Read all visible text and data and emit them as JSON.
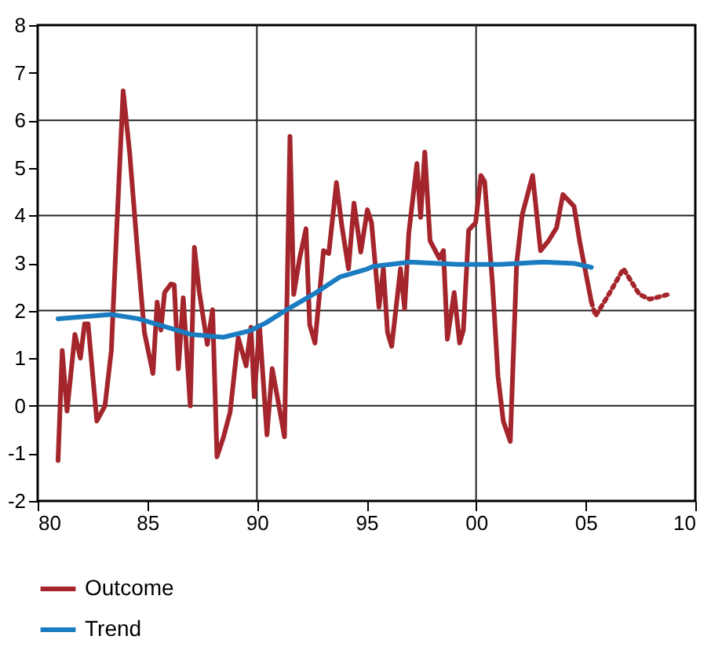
{
  "chart_data": {
    "type": "line",
    "xlim": [
      1980,
      2010
    ],
    "ylim": [
      -2,
      8
    ],
    "xticks": [
      {
        "value": 1980,
        "label": "80"
      },
      {
        "value": 1985,
        "label": "85"
      },
      {
        "value": 1990,
        "label": "90"
      },
      {
        "value": 1995,
        "label": "95"
      },
      {
        "value": 2000,
        "label": "00"
      },
      {
        "value": 2005,
        "label": "05"
      },
      {
        "value": 2010,
        "label": "10"
      }
    ],
    "yticks": [
      -2,
      -1,
      0,
      1,
      2,
      3,
      4,
      5,
      6,
      7,
      8
    ],
    "legend": "bottom",
    "grid": false,
    "ref_lines": [
      {
        "axis": "y",
        "value": 0
      },
      {
        "axis": "y",
        "value": 2
      },
      {
        "axis": "y",
        "value": 4
      },
      {
        "axis": "y",
        "value": 6
      },
      {
        "axis": "x",
        "value": 1990
      },
      {
        "axis": "x",
        "value": 2000
      }
    ],
    "series": [
      {
        "name": "Outcome",
        "color": "#a4262c",
        "line_style": "solid",
        "x": [
          1980.93,
          1981.12,
          1981.34,
          1981.7,
          1981.95,
          1982.14,
          1982.3,
          1982.7,
          1983.07,
          1983.36,
          1983.6,
          1983.9,
          1984.2,
          1984.58,
          1984.87,
          1985.26,
          1985.45,
          1985.62,
          1985.79,
          1986.08,
          1986.23,
          1986.42,
          1986.64,
          1986.96,
          1987.15,
          1987.37,
          1987.74,
          1987.98,
          1988.18,
          1988.47,
          1988.78,
          1989.15,
          1989.51,
          1989.73,
          1989.88,
          1990.12,
          1990.46,
          1990.7,
          1991.26,
          1991.51,
          1991.68,
          1991.95,
          1992.24,
          1992.41,
          1992.65,
          1993.04,
          1993.28,
          1993.63,
          1993.87,
          1994.18,
          1994.43,
          1994.74,
          1995.04,
          1995.23,
          1995.57,
          1995.77,
          1995.96,
          1996.15,
          1996.55,
          1996.74,
          1996.93,
          1997.3,
          1997.47,
          1997.66,
          1997.9,
          1998.32,
          1998.51,
          1998.69,
          1999.0,
          1999.25,
          1999.42,
          1999.66,
          1999.98,
          2000.22,
          2000.39,
          2000.75,
          2001.0,
          2001.24,
          2001.56,
          2001.85,
          2002.1,
          2002.58,
          2002.94,
          2003.31,
          2003.67,
          2003.96,
          2004.47,
          2004.72,
          2005.26
        ],
        "values": [
          -1.15,
          1.16,
          -0.11,
          1.5,
          1.0,
          1.72,
          1.72,
          -0.32,
          0.0,
          1.16,
          3.65,
          6.62,
          5.3,
          3.1,
          1.54,
          0.68,
          2.18,
          1.59,
          2.38,
          2.56,
          2.54,
          0.78,
          2.27,
          0.0,
          3.33,
          2.4,
          1.29,
          2.02,
          -1.07,
          -0.67,
          -0.13,
          1.43,
          0.84,
          1.65,
          0.19,
          1.68,
          -0.61,
          0.78,
          -0.65,
          5.66,
          2.34,
          3.1,
          3.72,
          1.7,
          1.32,
          3.26,
          3.2,
          4.69,
          3.8,
          2.88,
          4.26,
          3.23,
          4.12,
          3.85,
          2.07,
          2.88,
          1.54,
          1.25,
          2.88,
          2.04,
          3.63,
          5.09,
          3.96,
          5.33,
          3.47,
          3.1,
          3.26,
          1.4,
          2.38,
          1.32,
          1.59,
          3.69,
          3.85,
          4.84,
          4.71,
          2.56,
          0.62,
          -0.32,
          -0.75,
          2.99,
          4.01,
          4.84,
          3.26,
          3.47,
          3.74,
          4.44,
          4.19,
          3.47,
          2.18
        ]
      },
      {
        "name": "Trend",
        "color": "#1a7cc1",
        "line_style": "solid",
        "x": [
          1980.93,
          1983.36,
          1984.58,
          1987.0,
          1988.47,
          1989.7,
          1990.4,
          1991.4,
          1992.6,
          1993.8,
          1995.0,
          1995.3,
          1996.97,
          1999.2,
          2001.1,
          2003.04,
          2004.5,
          2005.26
        ],
        "values": [
          1.83,
          1.92,
          1.83,
          1.5,
          1.44,
          1.58,
          1.74,
          2.03,
          2.35,
          2.71,
          2.87,
          2.93,
          3.02,
          2.97,
          2.97,
          3.02,
          2.99,
          2.91
        ]
      },
      {
        "color": "#a4262c",
        "line_style": "dotted",
        "x": [
          2005.26,
          2005.45,
          2005.99,
          2006.72,
          2007.45,
          2007.93,
          2008.78
        ],
        "values": [
          2.18,
          1.89,
          2.29,
          2.88,
          2.34,
          2.24,
          2.34
        ]
      }
    ]
  }
}
